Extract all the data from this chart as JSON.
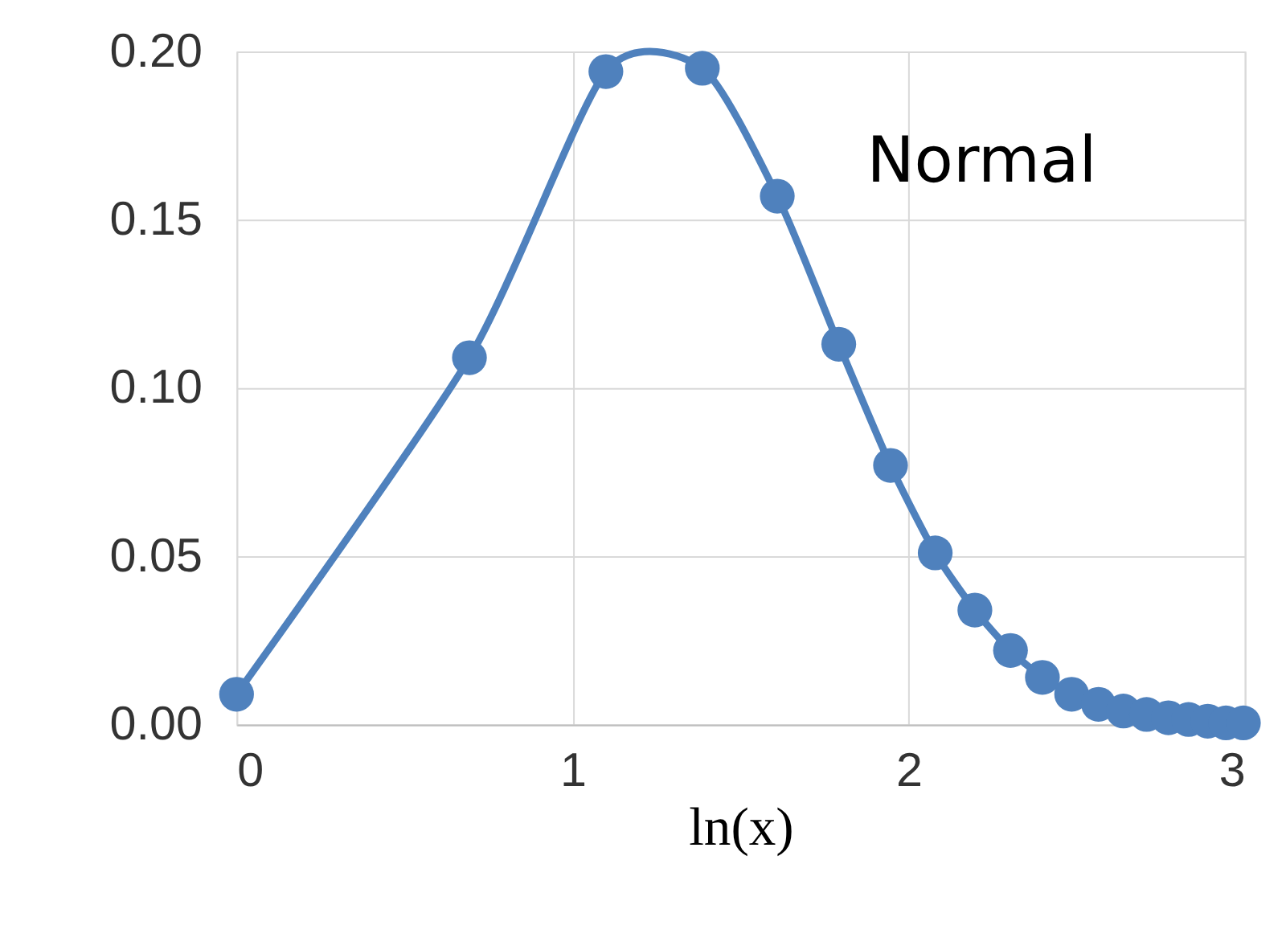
{
  "chart_data": {
    "type": "line",
    "xlabel": "ln(x)",
    "annotations": [
      "Normal"
    ],
    "x": [
      0,
      0.693,
      1.099,
      1.386,
      1.609,
      1.792,
      1.946,
      2.079,
      2.197,
      2.303,
      2.398,
      2.485,
      2.565,
      2.639,
      2.708,
      2.773,
      2.833,
      2.89,
      2.944,
      2.996
    ],
    "series": [
      {
        "color": "#4f81bd",
        "values": [
          0.009,
          0.109,
          0.194,
          0.195,
          0.157,
          0.113,
          0.077,
          0.051,
          0.034,
          0.022,
          0.014,
          0.009,
          0.006,
          0.004,
          0.003,
          0.002,
          0.0015,
          0.001,
          0.0005,
          0.0005
        ]
      }
    ],
    "xlim": [
      0,
      3
    ],
    "xticks": [
      0,
      1,
      2,
      3
    ],
    "ylim": [
      0,
      0.2
    ],
    "yticks": [
      {
        "value": 0,
        "label": "0.00"
      },
      {
        "value": 0.05,
        "label": "0.05"
      },
      {
        "value": 0.1,
        "label": "0.10"
      },
      {
        "value": 0.15,
        "label": "0.15"
      },
      {
        "value": 0.2,
        "label": "0.20"
      }
    ],
    "grid": true,
    "marker": "circle",
    "line_style": "solid"
  }
}
